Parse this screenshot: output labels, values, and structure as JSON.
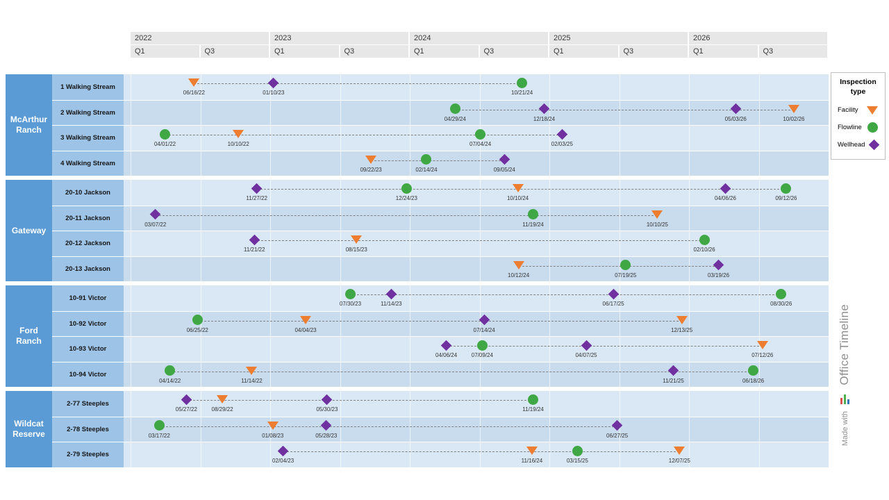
{
  "legend": {
    "title": "Inspection type",
    "items": [
      {
        "label": "Facility",
        "shape": "triangle",
        "color": "#ED7D31"
      },
      {
        "label": "Flowline",
        "shape": "circle",
        "color": "#3FA845"
      },
      {
        "label": "Wellhead",
        "shape": "diamond",
        "color": "#7030A0"
      }
    ]
  },
  "watermark": {
    "made_with": "Made with",
    "brand": "Office Timeline"
  },
  "chart_data": {
    "type": "timeline",
    "time_axis": {
      "start": "01/01/22",
      "end": "01/01/27",
      "years": [
        "2022",
        "2023",
        "2024",
        "2025",
        "2026"
      ],
      "quarters_per_year": [
        "Q1",
        "Q3"
      ]
    },
    "groups": [
      {
        "name": "McArthur Ranch",
        "rows": [
          {
            "label": "1 Walking Stream",
            "milestones": [
              {
                "date": "06/16/22",
                "type": "Facility"
              },
              {
                "date": "01/10/23",
                "type": "Wellhead"
              },
              {
                "date": "10/21/24",
                "type": "Flowline"
              }
            ]
          },
          {
            "label": "2 Walking Stream",
            "milestones": [
              {
                "date": "04/29/24",
                "type": "Flowline"
              },
              {
                "date": "12/18/24",
                "type": "Wellhead"
              },
              {
                "date": "05/03/26",
                "type": "Wellhead"
              },
              {
                "date": "10/02/26",
                "type": "Facility"
              }
            ]
          },
          {
            "label": "3 Walking Stream",
            "milestones": [
              {
                "date": "04/01/22",
                "type": "Flowline"
              },
              {
                "date": "10/10/22",
                "type": "Facility"
              },
              {
                "date": "07/04/24",
                "type": "Flowline"
              },
              {
                "date": "02/03/25",
                "type": "Wellhead"
              }
            ]
          },
          {
            "label": "4 Walking Stream",
            "milestones": [
              {
                "date": "09/22/23",
                "type": "Facility"
              },
              {
                "date": "02/14/24",
                "type": "Flowline"
              },
              {
                "date": "09/05/24",
                "type": "Wellhead"
              }
            ]
          }
        ]
      },
      {
        "name": "Gateway",
        "rows": [
          {
            "label": "20-10 Jackson",
            "milestones": [
              {
                "date": "11/27/22",
                "type": "Wellhead"
              },
              {
                "date": "12/24/23",
                "type": "Flowline"
              },
              {
                "date": "10/10/24",
                "type": "Facility"
              },
              {
                "date": "04/06/26",
                "type": "Wellhead"
              },
              {
                "date": "09/12/26",
                "type": "Flowline"
              }
            ]
          },
          {
            "label": "20-11 Jackson",
            "milestones": [
              {
                "date": "03/07/22",
                "type": "Wellhead"
              },
              {
                "date": "11/19/24",
                "type": "Flowline"
              },
              {
                "date": "10/10/25",
                "type": "Facility"
              }
            ]
          },
          {
            "label": "20-12 Jackson",
            "milestones": [
              {
                "date": "11/21/22",
                "type": "Wellhead"
              },
              {
                "date": "08/15/23",
                "type": "Facility"
              },
              {
                "date": "02/10/26",
                "type": "Flowline"
              }
            ]
          },
          {
            "label": "20-13 Jackson",
            "milestones": [
              {
                "date": "10/12/24",
                "type": "Facility"
              },
              {
                "date": "07/19/25",
                "type": "Flowline"
              },
              {
                "date": "03/19/26",
                "type": "Wellhead"
              }
            ]
          }
        ]
      },
      {
        "name": "Ford Ranch",
        "rows": [
          {
            "label": "10-91 Victor",
            "milestones": [
              {
                "date": "07/30/23",
                "type": "Flowline"
              },
              {
                "date": "11/14/23",
                "type": "Wellhead"
              },
              {
                "date": "06/17/25",
                "type": "Wellhead"
              },
              {
                "date": "08/30/26",
                "type": "Flowline"
              }
            ]
          },
          {
            "label": "10-92 Victor",
            "milestones": [
              {
                "date": "06/25/22",
                "type": "Flowline"
              },
              {
                "date": "04/04/23",
                "type": "Facility"
              },
              {
                "date": "07/14/24",
                "type": "Wellhead"
              },
              {
                "date": "12/13/25",
                "type": "Facility"
              }
            ]
          },
          {
            "label": "10-93 Victor",
            "milestones": [
              {
                "date": "04/06/24",
                "type": "Wellhead"
              },
              {
                "date": "07/09/24",
                "type": "Flowline"
              },
              {
                "date": "04/07/25",
                "type": "Wellhead"
              },
              {
                "date": "07/12/26",
                "type": "Facility"
              }
            ]
          },
          {
            "label": "10-94 Victor",
            "milestones": [
              {
                "date": "04/14/22",
                "type": "Flowline"
              },
              {
                "date": "11/14/22",
                "type": "Facility"
              },
              {
                "date": "11/21/25",
                "type": "Wellhead"
              },
              {
                "date": "06/18/26",
                "type": "Flowline"
              }
            ]
          }
        ]
      },
      {
        "name": "Wildcat Reserve",
        "rows": [
          {
            "label": "2-77 Steeples",
            "milestones": [
              {
                "date": "05/27/22",
                "type": "Wellhead"
              },
              {
                "date": "08/29/22",
                "type": "Facility"
              },
              {
                "date": "05/30/23",
                "type": "Wellhead"
              },
              {
                "date": "11/19/24",
                "type": "Flowline"
              }
            ]
          },
          {
            "label": "2-78 Steeples",
            "milestones": [
              {
                "date": "03/17/22",
                "type": "Flowline"
              },
              {
                "date": "01/08/23",
                "type": "Facility"
              },
              {
                "date": "05/28/23",
                "type": "Wellhead"
              },
              {
                "date": "06/27/25",
                "type": "Wellhead"
              }
            ]
          },
          {
            "label": "2-79 Steeples",
            "milestones": [
              {
                "date": "02/04/23",
                "type": "Wellhead"
              },
              {
                "date": "11/16/24",
                "type": "Facility"
              },
              {
                "date": "03/15/25",
                "type": "Flowline"
              },
              {
                "date": "12/07/25",
                "type": "Facility"
              }
            ]
          }
        ]
      }
    ]
  }
}
